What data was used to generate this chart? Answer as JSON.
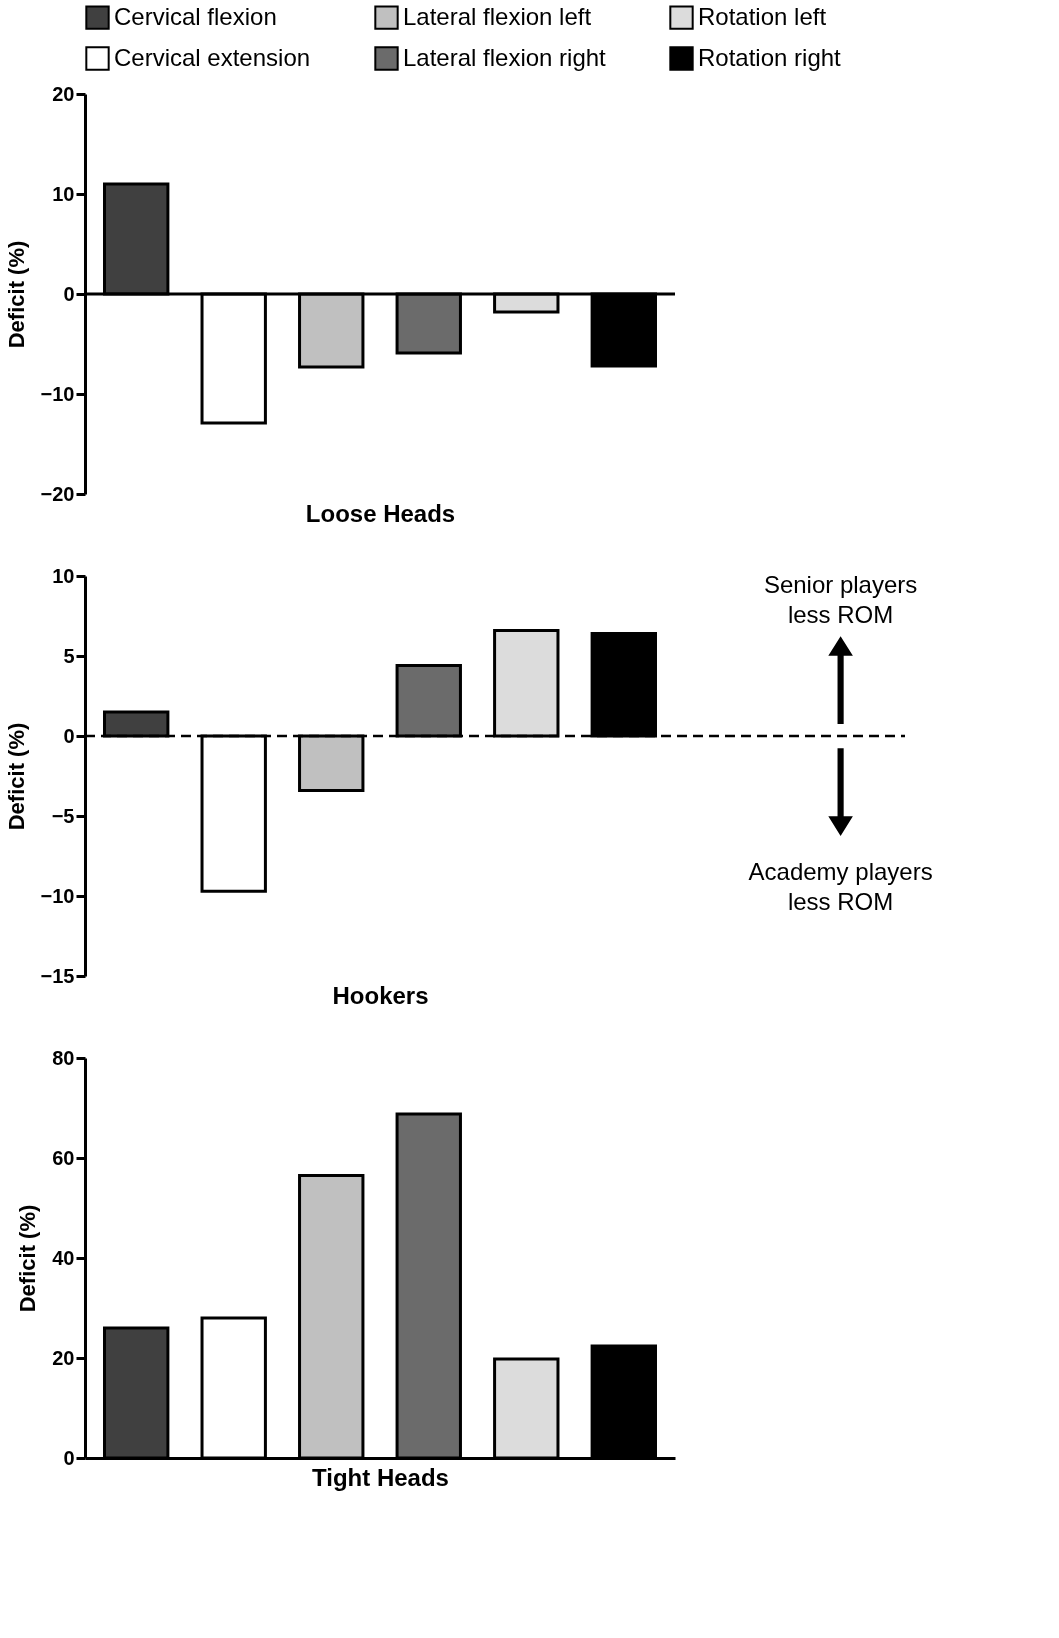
{
  "chart_data": [
    {
      "type": "bar",
      "xlabel": "Loose Heads",
      "ylabel": "Deficit (%)",
      "categories": [
        null
      ],
      "ylim": [
        -20,
        20
      ],
      "yticks": [
        -20,
        -10,
        0,
        10,
        20
      ],
      "legend": "top",
      "grid": false,
      "ref_lines": [
        {
          "axis": "y",
          "value": 0,
          "line_style": "solid",
          "color": "#000000"
        }
      ],
      "series": [
        {
          "name": "Cervical flexion",
          "color": "#404040",
          "values": [
            11.0
          ]
        },
        {
          "name": "Cervical extension",
          "color": "#ffffff",
          "values": [
            -12.9
          ]
        },
        {
          "name": "Lateral  flexion left",
          "color": "#c0c0c0",
          "values": [
            -7.3
          ]
        },
        {
          "name": "Lateral flexion right",
          "color": "#6b6b6b",
          "values": [
            -5.9
          ]
        },
        {
          "name": "Rotation left",
          "color": "#dcdcdc",
          "values": [
            -1.8
          ]
        },
        {
          "name": "Rotation right",
          "color": "#000000",
          "values": [
            -7.2
          ]
        }
      ]
    },
    {
      "type": "bar",
      "xlabel": "Hookers",
      "ylabel": "Deficit (%)",
      "categories": [
        null
      ],
      "ylim": [
        -15,
        10
      ],
      "yticks": [
        -15,
        -10,
        -5,
        0,
        5,
        10
      ],
      "grid": false,
      "series": [
        {
          "color": "#404040",
          "values": [
            1.5
          ]
        },
        {
          "color": "#ffffff",
          "values": [
            -9.7
          ]
        },
        {
          "color": "#c0c0c0",
          "values": [
            -3.4
          ]
        },
        {
          "color": "#6b6b6b",
          "values": [
            4.4
          ]
        },
        {
          "color": "#dcdcdc",
          "values": [
            6.6
          ]
        },
        {
          "color": "#000000",
          "values": [
            6.4
          ]
        }
      ],
      "ref_lines": [
        {
          "axis": "y",
          "value": 0,
          "line_style": "dashed",
          "color": "#000000"
        }
      ],
      "annotations": [
        "Senior players\nless ROM",
        "Academy players\nless ROM"
      ]
    },
    {
      "type": "bar",
      "xlabel": "Tight Heads",
      "ylabel": "Deficit (%)",
      "categories": [
        null
      ],
      "ylim": [
        0,
        80
      ],
      "yticks": [
        0,
        20,
        40,
        60,
        80
      ],
      "grid": false,
      "series": [
        {
          "color": "#404040",
          "values": [
            26.0
          ]
        },
        {
          "color": "#ffffff",
          "values": [
            28.0
          ]
        },
        {
          "color": "#c0c0c0",
          "values": [
            56.5
          ]
        },
        {
          "color": "#6b6b6b",
          "values": [
            68.8
          ]
        },
        {
          "color": "#dcdcdc",
          "values": [
            19.8
          ]
        },
        {
          "color": "#000000",
          "values": [
            22.4
          ]
        }
      ]
    }
  ]
}
